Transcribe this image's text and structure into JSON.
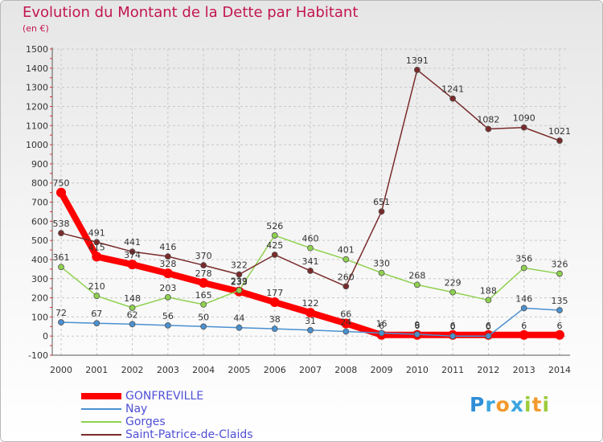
{
  "title": "Evolution du Montant de la Dette par Habitant",
  "subtitle": "(en €)",
  "logo": {
    "text": "Proxiti",
    "letters": [
      {
        "ch": "P",
        "color": "#2e8ed6"
      },
      {
        "ch": "r",
        "color": "#3aa5e0"
      },
      {
        "ch": "o",
        "color": "#f29a2e"
      },
      {
        "ch": "x",
        "color": "#3aa5e0"
      },
      {
        "ch": "i",
        "color": "#9ccc3a"
      },
      {
        "ch": "t",
        "color": "#f29a2e"
      },
      {
        "ch": "i",
        "color": "#9ccc3a"
      }
    ]
  },
  "chart_data": {
    "type": "line",
    "title": "Evolution du Montant de la Dette par Habitant",
    "ylabel": "(en €)",
    "xlabel": "",
    "ylim": [
      -100,
      1500
    ],
    "yticks": [
      -100,
      0,
      100,
      200,
      300,
      400,
      500,
      600,
      700,
      800,
      900,
      1000,
      1100,
      1200,
      1300,
      1400,
      1500
    ],
    "x": [
      "2000",
      "2001",
      "2002",
      "2003",
      "2004",
      "2005",
      "2006",
      "2007",
      "2008",
      "2009",
      "2010",
      "2011",
      "2012",
      "2013",
      "2014"
    ],
    "grid": true,
    "legend_position": "bottom-left",
    "series": [
      {
        "name": "GONFREVILLE",
        "color": "#ff0000",
        "values": [
          750,
          415,
          374,
          328,
          278,
          233,
          177,
          122,
          66,
          6,
          6,
          6,
          6,
          6,
          6
        ],
        "labels": [
          "750",
          "415",
          "374",
          "328",
          "278",
          "233",
          "177",
          "122",
          "66",
          "6",
          "6",
          "6",
          "6",
          "6",
          "6"
        ]
      },
      {
        "name": "Nay",
        "color": "#4a90d0",
        "values": [
          72,
          67,
          62,
          56,
          50,
          44,
          38,
          31,
          24,
          16,
          9,
          0,
          0,
          146,
          135
        ],
        "labels": [
          "72",
          "67",
          "62",
          "56",
          "50",
          "44",
          "38",
          "31",
          "24",
          "16",
          "9",
          "0",
          "0",
          "146",
          "135"
        ]
      },
      {
        "name": "Gorges",
        "color": "#8fd14f",
        "values": [
          361,
          210,
          148,
          203,
          165,
          239,
          526,
          460,
          401,
          330,
          268,
          229,
          188,
          356,
          326
        ],
        "labels": [
          "361",
          "210",
          "148",
          "203",
          "165",
          "239",
          "526",
          "460",
          "401",
          "330",
          "268",
          "229",
          "188",
          "356",
          "326"
        ]
      },
      {
        "name": "Saint-Patrice-de-Claids",
        "color": "#7a2a2a",
        "values": [
          538,
          491,
          441,
          416,
          370,
          322,
          425,
          341,
          260,
          651,
          1391,
          1241,
          1082,
          1090,
          1021
        ],
        "labels": [
          "538",
          "491",
          "441",
          "416",
          "370",
          "322",
          "425",
          "341",
          "260",
          "651",
          "1391",
          "1241",
          "1082",
          "1090",
          "1021"
        ]
      }
    ]
  }
}
